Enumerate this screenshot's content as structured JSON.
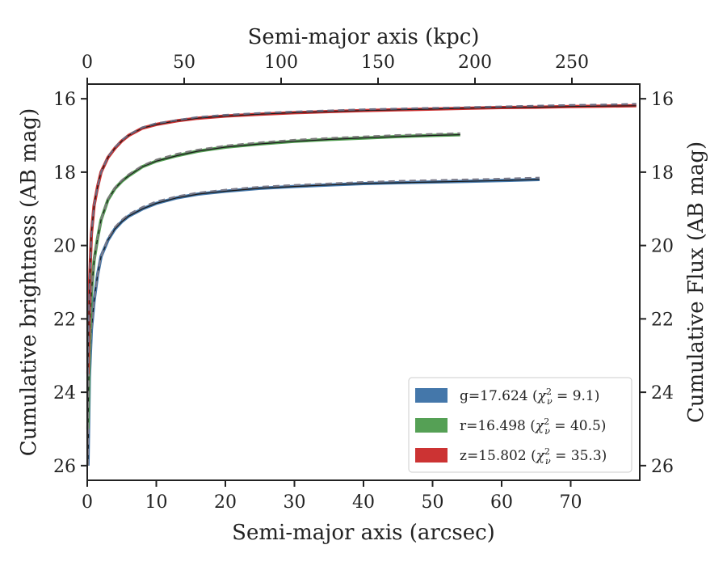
{
  "chart_data": {
    "type": "line",
    "xlabel": "Semi-major axis (arcsec)",
    "ylabel": "Cumulative brightness (AB mag)",
    "top_xlabel": "Semi-major axis (kpc)",
    "right_ylabel": "Cumulative Flux (AB mag)",
    "xlim": [
      0,
      80
    ],
    "ylim": [
      26.4,
      15.6
    ],
    "y_inverted": true,
    "top_xlim": [
      0,
      285
    ],
    "x_ticks": [
      0,
      10,
      20,
      30,
      40,
      50,
      60,
      70
    ],
    "y_ticks": [
      16,
      18,
      20,
      22,
      24,
      26
    ],
    "top_x_ticks": [
      0,
      50,
      100,
      150,
      200,
      250
    ],
    "grid": false,
    "legend_position": "lower-right",
    "series": [
      {
        "band": "g",
        "legend": {
          "prefix": "g=17.624 (",
          "chi": "χ",
          "sub": "ν",
          "sup": "2",
          "suffix": " = 9.1)"
        },
        "color": "#4477aa",
        "model_color": "#7a7a8a",
        "x": [
          0.1,
          0.3,
          0.6,
          1,
          1.5,
          2,
          3,
          4,
          5,
          6,
          8,
          10,
          13,
          16,
          20,
          25,
          30,
          35,
          40,
          45,
          50,
          55,
          60,
          65.5
        ],
        "y": [
          26.0,
          23.6,
          22.3,
          21.5,
          20.8,
          20.3,
          19.85,
          19.55,
          19.35,
          19.2,
          19.0,
          18.85,
          18.7,
          18.6,
          18.52,
          18.44,
          18.39,
          18.35,
          18.31,
          18.29,
          18.27,
          18.25,
          18.23,
          18.2
        ],
        "model_y": [
          26.0,
          23.6,
          22.3,
          21.5,
          20.8,
          20.3,
          19.8,
          19.5,
          19.3,
          19.15,
          18.95,
          18.8,
          18.66,
          18.56,
          18.48,
          18.4,
          18.35,
          18.31,
          18.27,
          18.24,
          18.22,
          18.2,
          18.18,
          18.15
        ]
      },
      {
        "band": "r",
        "legend": {
          "prefix": "r=16.498 (",
          "chi": "χ",
          "sub": "ν",
          "sup": "2",
          "suffix": " = 40.5)"
        },
        "color": "#55a055",
        "model_color": "#7a7a7a",
        "x": [
          0.1,
          0.3,
          0.6,
          1,
          1.5,
          2,
          3,
          4,
          5,
          6,
          8,
          10,
          13,
          16,
          20,
          25,
          30,
          35,
          40,
          45,
          50,
          54
        ],
        "y": [
          25.0,
          22.8,
          21.3,
          20.4,
          19.8,
          19.3,
          18.75,
          18.45,
          18.25,
          18.1,
          17.85,
          17.7,
          17.55,
          17.43,
          17.32,
          17.23,
          17.16,
          17.11,
          17.07,
          17.03,
          17.0,
          16.98
        ],
        "model_y": [
          25.0,
          22.8,
          21.3,
          20.4,
          19.8,
          19.3,
          18.72,
          18.42,
          18.22,
          18.06,
          17.82,
          17.66,
          17.5,
          17.39,
          17.28,
          17.19,
          17.12,
          17.07,
          17.03,
          16.99,
          16.96,
          16.94
        ]
      },
      {
        "band": "z",
        "legend": {
          "prefix": "z=15.802 (",
          "chi": "χ",
          "sub": "ν",
          "sup": "2",
          "suffix": " = 35.3)"
        },
        "color": "#cc3333",
        "model_color": "#6a6a80",
        "x": [
          0.1,
          0.3,
          0.6,
          1,
          1.5,
          2,
          3,
          4,
          5,
          6,
          8,
          10,
          13,
          16,
          20,
          25,
          30,
          35,
          40,
          45,
          50,
          55,
          60,
          65,
          70,
          75,
          79.5
        ],
        "y": [
          23.5,
          21.2,
          19.7,
          18.9,
          18.4,
          18.0,
          17.6,
          17.35,
          17.15,
          17.0,
          16.8,
          16.7,
          16.6,
          16.53,
          16.47,
          16.42,
          16.38,
          16.35,
          16.32,
          16.3,
          16.28,
          16.26,
          16.24,
          16.23,
          16.21,
          16.2,
          16.19
        ],
        "model_y": [
          23.5,
          21.2,
          19.7,
          18.9,
          18.4,
          18.0,
          17.58,
          17.33,
          17.13,
          16.98,
          16.78,
          16.67,
          16.58,
          16.5,
          16.44,
          16.39,
          16.35,
          16.32,
          16.29,
          16.27,
          16.25,
          16.23,
          16.21,
          16.19,
          16.17,
          16.16,
          16.14
        ]
      }
    ]
  }
}
